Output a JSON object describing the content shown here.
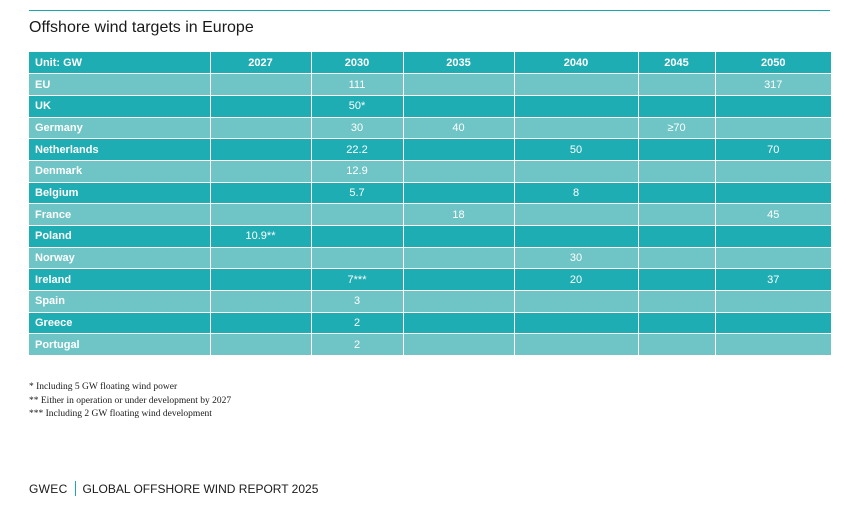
{
  "title": "Offshore wind targets in Europe",
  "table": {
    "headers": [
      "Unit: GW",
      "2027",
      "2030",
      "2035",
      "2040",
      "2045",
      "2050"
    ],
    "rows": [
      {
        "country": "EU",
        "values": [
          "",
          "111",
          "",
          "",
          "",
          "317"
        ]
      },
      {
        "country": "UK",
        "values": [
          "",
          "50*",
          "",
          "",
          "",
          ""
        ]
      },
      {
        "country": "Germany",
        "values": [
          "",
          "30",
          "40",
          "",
          "≥70",
          ""
        ]
      },
      {
        "country": "Netherlands",
        "values": [
          "",
          "22.2",
          "",
          "50",
          "",
          "70"
        ]
      },
      {
        "country": "Denmark",
        "values": [
          "",
          "12.9",
          "",
          "",
          "",
          ""
        ]
      },
      {
        "country": "Belgium",
        "values": [
          "",
          "5.7",
          "",
          "8",
          "",
          ""
        ]
      },
      {
        "country": "France",
        "values": [
          "",
          "",
          "18",
          "",
          "",
          "45"
        ]
      },
      {
        "country": "Poland",
        "values": [
          "10.9**",
          "",
          "",
          "",
          "",
          ""
        ]
      },
      {
        "country": "Norway",
        "values": [
          "",
          "",
          "",
          "30",
          "",
          ""
        ]
      },
      {
        "country": "Ireland",
        "values": [
          "",
          "7***",
          "",
          "20",
          "",
          "37"
        ]
      },
      {
        "country": "Spain",
        "values": [
          "",
          "3",
          "",
          "",
          "",
          ""
        ]
      },
      {
        "country": "Greece",
        "values": [
          "",
          "2",
          "",
          "",
          "",
          ""
        ]
      },
      {
        "country": "Portugal",
        "values": [
          "",
          "2",
          "",
          "",
          "",
          ""
        ]
      }
    ]
  },
  "footnotes": [
    "* Including 5 GW floating wind power",
    "** Either in operation or under development by 2027",
    "*** Including 2 GW floating wind development"
  ],
  "footer": {
    "brand": "GWEC",
    "report": "GLOBAL OFFSHORE WIND REPORT 2025"
  },
  "colors": {
    "header_row": "#1fadb4",
    "row_light": "#6fc5c6",
    "row_dark": "#1fadb4",
    "accent_rule": "#1aa7b4"
  }
}
